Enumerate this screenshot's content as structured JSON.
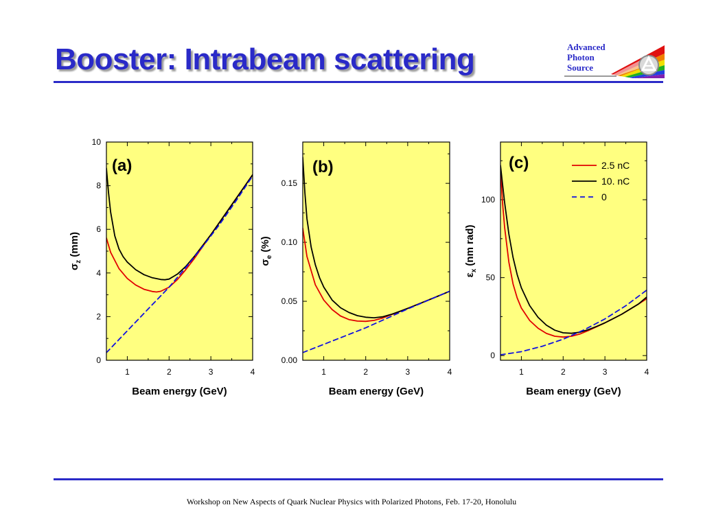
{
  "slide": {
    "title": "Booster: Intrabeam scattering",
    "footer": "Workshop on New Aspects of Quark Nuclear Physics with Polarized Photons, Feb. 17-20, Honolulu",
    "accent_color": "#2a2ac8",
    "logo": {
      "line1": "Advanced",
      "line2": "Photon",
      "line3": "Source"
    }
  },
  "chart_data": [
    {
      "type": "line",
      "panel_label": "(a)",
      "xlabel": "Beam energy (GeV)",
      "ylabel_symbol": "σ",
      "ylabel_sub": "z",
      "ylabel_rest": " (mm)",
      "xlim": [
        0.5,
        4.0
      ],
      "ylim": [
        0,
        10
      ],
      "xticks": [
        1,
        2,
        3,
        4
      ],
      "xtick_labels": [
        "1",
        "2",
        "3",
        "4"
      ],
      "yticks": [
        0,
        2,
        4,
        6,
        8,
        10
      ],
      "ytick_labels": [
        "0",
        "2",
        "4",
        "6",
        "8",
        "10"
      ],
      "background": "#ffff80",
      "series": [
        {
          "name": "2.5 nC",
          "color": "#e00000",
          "dash": false,
          "x": [
            0.5,
            0.6,
            0.8,
            1.0,
            1.2,
            1.4,
            1.6,
            1.7,
            1.8,
            2.0,
            2.2,
            2.4,
            2.6,
            2.8,
            3.0,
            3.2,
            3.4,
            3.6,
            3.8,
            4.0
          ],
          "y": [
            5.6,
            4.95,
            4.2,
            3.75,
            3.45,
            3.25,
            3.15,
            3.13,
            3.16,
            3.35,
            3.7,
            4.15,
            4.65,
            5.2,
            5.75,
            6.3,
            6.85,
            7.4,
            7.95,
            8.5
          ]
        },
        {
          "name": "10. nC",
          "color": "#000000",
          "dash": false,
          "x": [
            0.5,
            0.55,
            0.6,
            0.7,
            0.8,
            0.9,
            1.0,
            1.2,
            1.4,
            1.6,
            1.8,
            1.9,
            2.0,
            2.2,
            2.4,
            2.6,
            2.8,
            3.0,
            3.2,
            3.4,
            3.6,
            3.8,
            4.0
          ],
          "y": [
            8.8,
            7.7,
            6.8,
            5.7,
            5.1,
            4.75,
            4.5,
            4.15,
            3.92,
            3.78,
            3.7,
            3.69,
            3.72,
            3.95,
            4.3,
            4.75,
            5.25,
            5.75,
            6.3,
            6.85,
            7.4,
            7.95,
            8.5
          ]
        },
        {
          "name": "0",
          "color": "#1010e0",
          "dash": true,
          "x": [
            0.5,
            0.8,
            1.0,
            1.3,
            1.6,
            2.0,
            2.4,
            2.8,
            3.2,
            3.6,
            4.0
          ],
          "y": [
            0.35,
            0.95,
            1.35,
            1.95,
            2.55,
            3.35,
            4.25,
            5.2,
            6.2,
            7.3,
            8.45
          ]
        }
      ]
    },
    {
      "type": "line",
      "panel_label": "(b)",
      "xlabel": "Beam energy (GeV)",
      "ylabel_symbol": "σ",
      "ylabel_sub": "e",
      "ylabel_rest": " (%)",
      "xlim": [
        0.5,
        4.0
      ],
      "ylim": [
        0,
        0.185
      ],
      "xticks": [
        1,
        2,
        3,
        4
      ],
      "xtick_labels": [
        "1",
        "2",
        "3",
        "4"
      ],
      "yticks": [
        0,
        0.05,
        0.1,
        0.15
      ],
      "ytick_labels": [
        "0.00",
        "0.05",
        "0.10",
        "0.15"
      ],
      "background": "#ffff80",
      "series": [
        {
          "name": "2.5 nC",
          "color": "#e00000",
          "dash": false,
          "x": [
            0.5,
            0.6,
            0.8,
            1.0,
            1.2,
            1.4,
            1.6,
            1.8,
            2.0,
            2.2,
            2.4,
            2.6,
            2.8,
            3.0,
            3.4,
            3.8,
            4.0
          ],
          "y": [
            0.112,
            0.088,
            0.064,
            0.051,
            0.043,
            0.0375,
            0.0345,
            0.0332,
            0.033,
            0.0338,
            0.0358,
            0.0385,
            0.0412,
            0.044,
            0.0497,
            0.0555,
            0.0585
          ]
        },
        {
          "name": "10. nC",
          "color": "#000000",
          "dash": false,
          "x": [
            0.5,
            0.55,
            0.6,
            0.7,
            0.8,
            0.9,
            1.0,
            1.2,
            1.4,
            1.6,
            1.8,
            2.0,
            2.2,
            2.4,
            2.6,
            2.8,
            3.0,
            3.4,
            3.8,
            4.0
          ],
          "y": [
            0.172,
            0.142,
            0.12,
            0.096,
            0.081,
            0.07,
            0.062,
            0.051,
            0.0445,
            0.0405,
            0.0378,
            0.0365,
            0.036,
            0.0368,
            0.0388,
            0.0413,
            0.044,
            0.0497,
            0.0555,
            0.0585
          ]
        },
        {
          "name": "0",
          "color": "#1010e0",
          "dash": true,
          "x": [
            0.5,
            1.0,
            1.5,
            2.0,
            2.5,
            3.0,
            3.5,
            4.0
          ],
          "y": [
            0.0065,
            0.0135,
            0.0205,
            0.0275,
            0.0355,
            0.0435,
            0.051,
            0.0585
          ]
        }
      ]
    },
    {
      "type": "line",
      "panel_label": "(c)",
      "xlabel": "Beam energy (GeV)",
      "ylabel_symbol": "ε",
      "ylabel_sub": "x",
      "ylabel_rest": " (nm rad)",
      "xlim": [
        0.5,
        4.0
      ],
      "ylim": [
        -3,
        137
      ],
      "xticks": [
        1,
        2,
        3,
        4
      ],
      "xtick_labels": [
        "1",
        "2",
        "3",
        "4"
      ],
      "yticks": [
        0,
        50,
        100
      ],
      "ytick_labels": [
        "0",
        "50",
        "100"
      ],
      "background": "#ffff80",
      "legend": "top-right",
      "series": [
        {
          "name": "2.5 nC",
          "color": "#e00000",
          "dash": false,
          "x": [
            0.5,
            0.55,
            0.6,
            0.7,
            0.8,
            0.9,
            1.0,
            1.2,
            1.4,
            1.6,
            1.8,
            2.0,
            2.2,
            2.4,
            2.6,
            2.8,
            3.0,
            3.4,
            3.8,
            4.0
          ],
          "y": [
            120,
            98,
            82,
            60,
            46,
            37,
            30.5,
            22.5,
            17.5,
            14.2,
            12.4,
            11.9,
            12.4,
            13.8,
            16,
            18.5,
            21,
            26.5,
            33,
            36.5
          ]
        },
        {
          "name": "10. nC",
          "color": "#000000",
          "dash": false,
          "x": [
            0.5,
            0.55,
            0.6,
            0.7,
            0.8,
            0.9,
            1.0,
            1.2,
            1.4,
            1.6,
            1.8,
            2.0,
            2.2,
            2.4,
            2.6,
            2.8,
            3.0,
            3.4,
            3.8,
            4.0
          ],
          "y": [
            122,
            110,
            98,
            78,
            63,
            52,
            43.5,
            32,
            24.5,
            19.5,
            16.3,
            14.6,
            14.3,
            15,
            16.6,
            18.7,
            21,
            26.5,
            33,
            37.5
          ]
        },
        {
          "name": "0",
          "color": "#1010e0",
          "dash": true,
          "x": [
            0.5,
            1.0,
            1.5,
            2.0,
            2.5,
            3.0,
            3.5,
            4.0
          ],
          "y": [
            0.5,
            2.5,
            6,
            10.5,
            16.5,
            23.5,
            32,
            42
          ]
        }
      ]
    }
  ]
}
